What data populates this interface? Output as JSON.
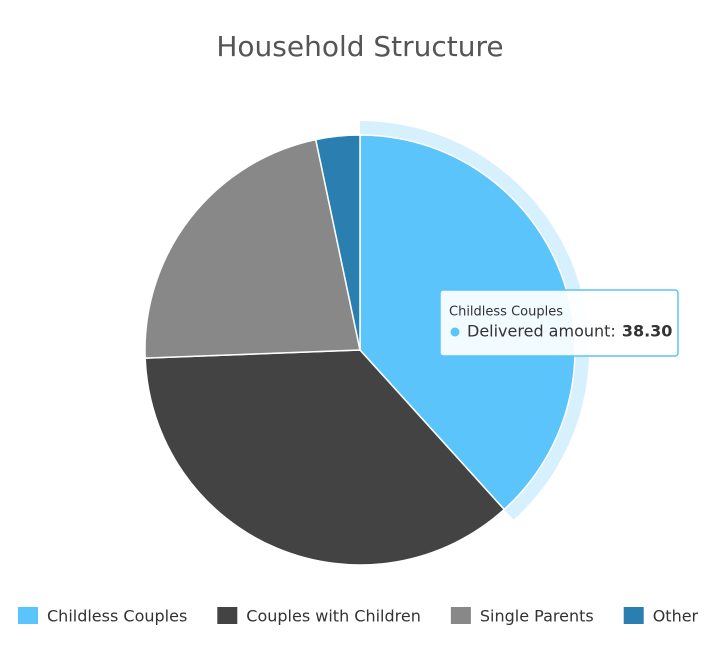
{
  "chart_data": {
    "type": "pie",
    "title": "Household Structure",
    "categories": [
      "Childless Couples",
      "Couples with Children",
      "Single Parents",
      "Other"
    ],
    "values": [
      38.3,
      36.1,
      22.3,
      3.3
    ],
    "value_labels": [
      "38.30",
      null,
      null,
      null
    ],
    "colors": [
      "#5bc4fa",
      "#434343",
      "#888888",
      "#2b7fb0"
    ],
    "tooltip_label": "Delivered amount:",
    "legend": "bottom"
  }
}
